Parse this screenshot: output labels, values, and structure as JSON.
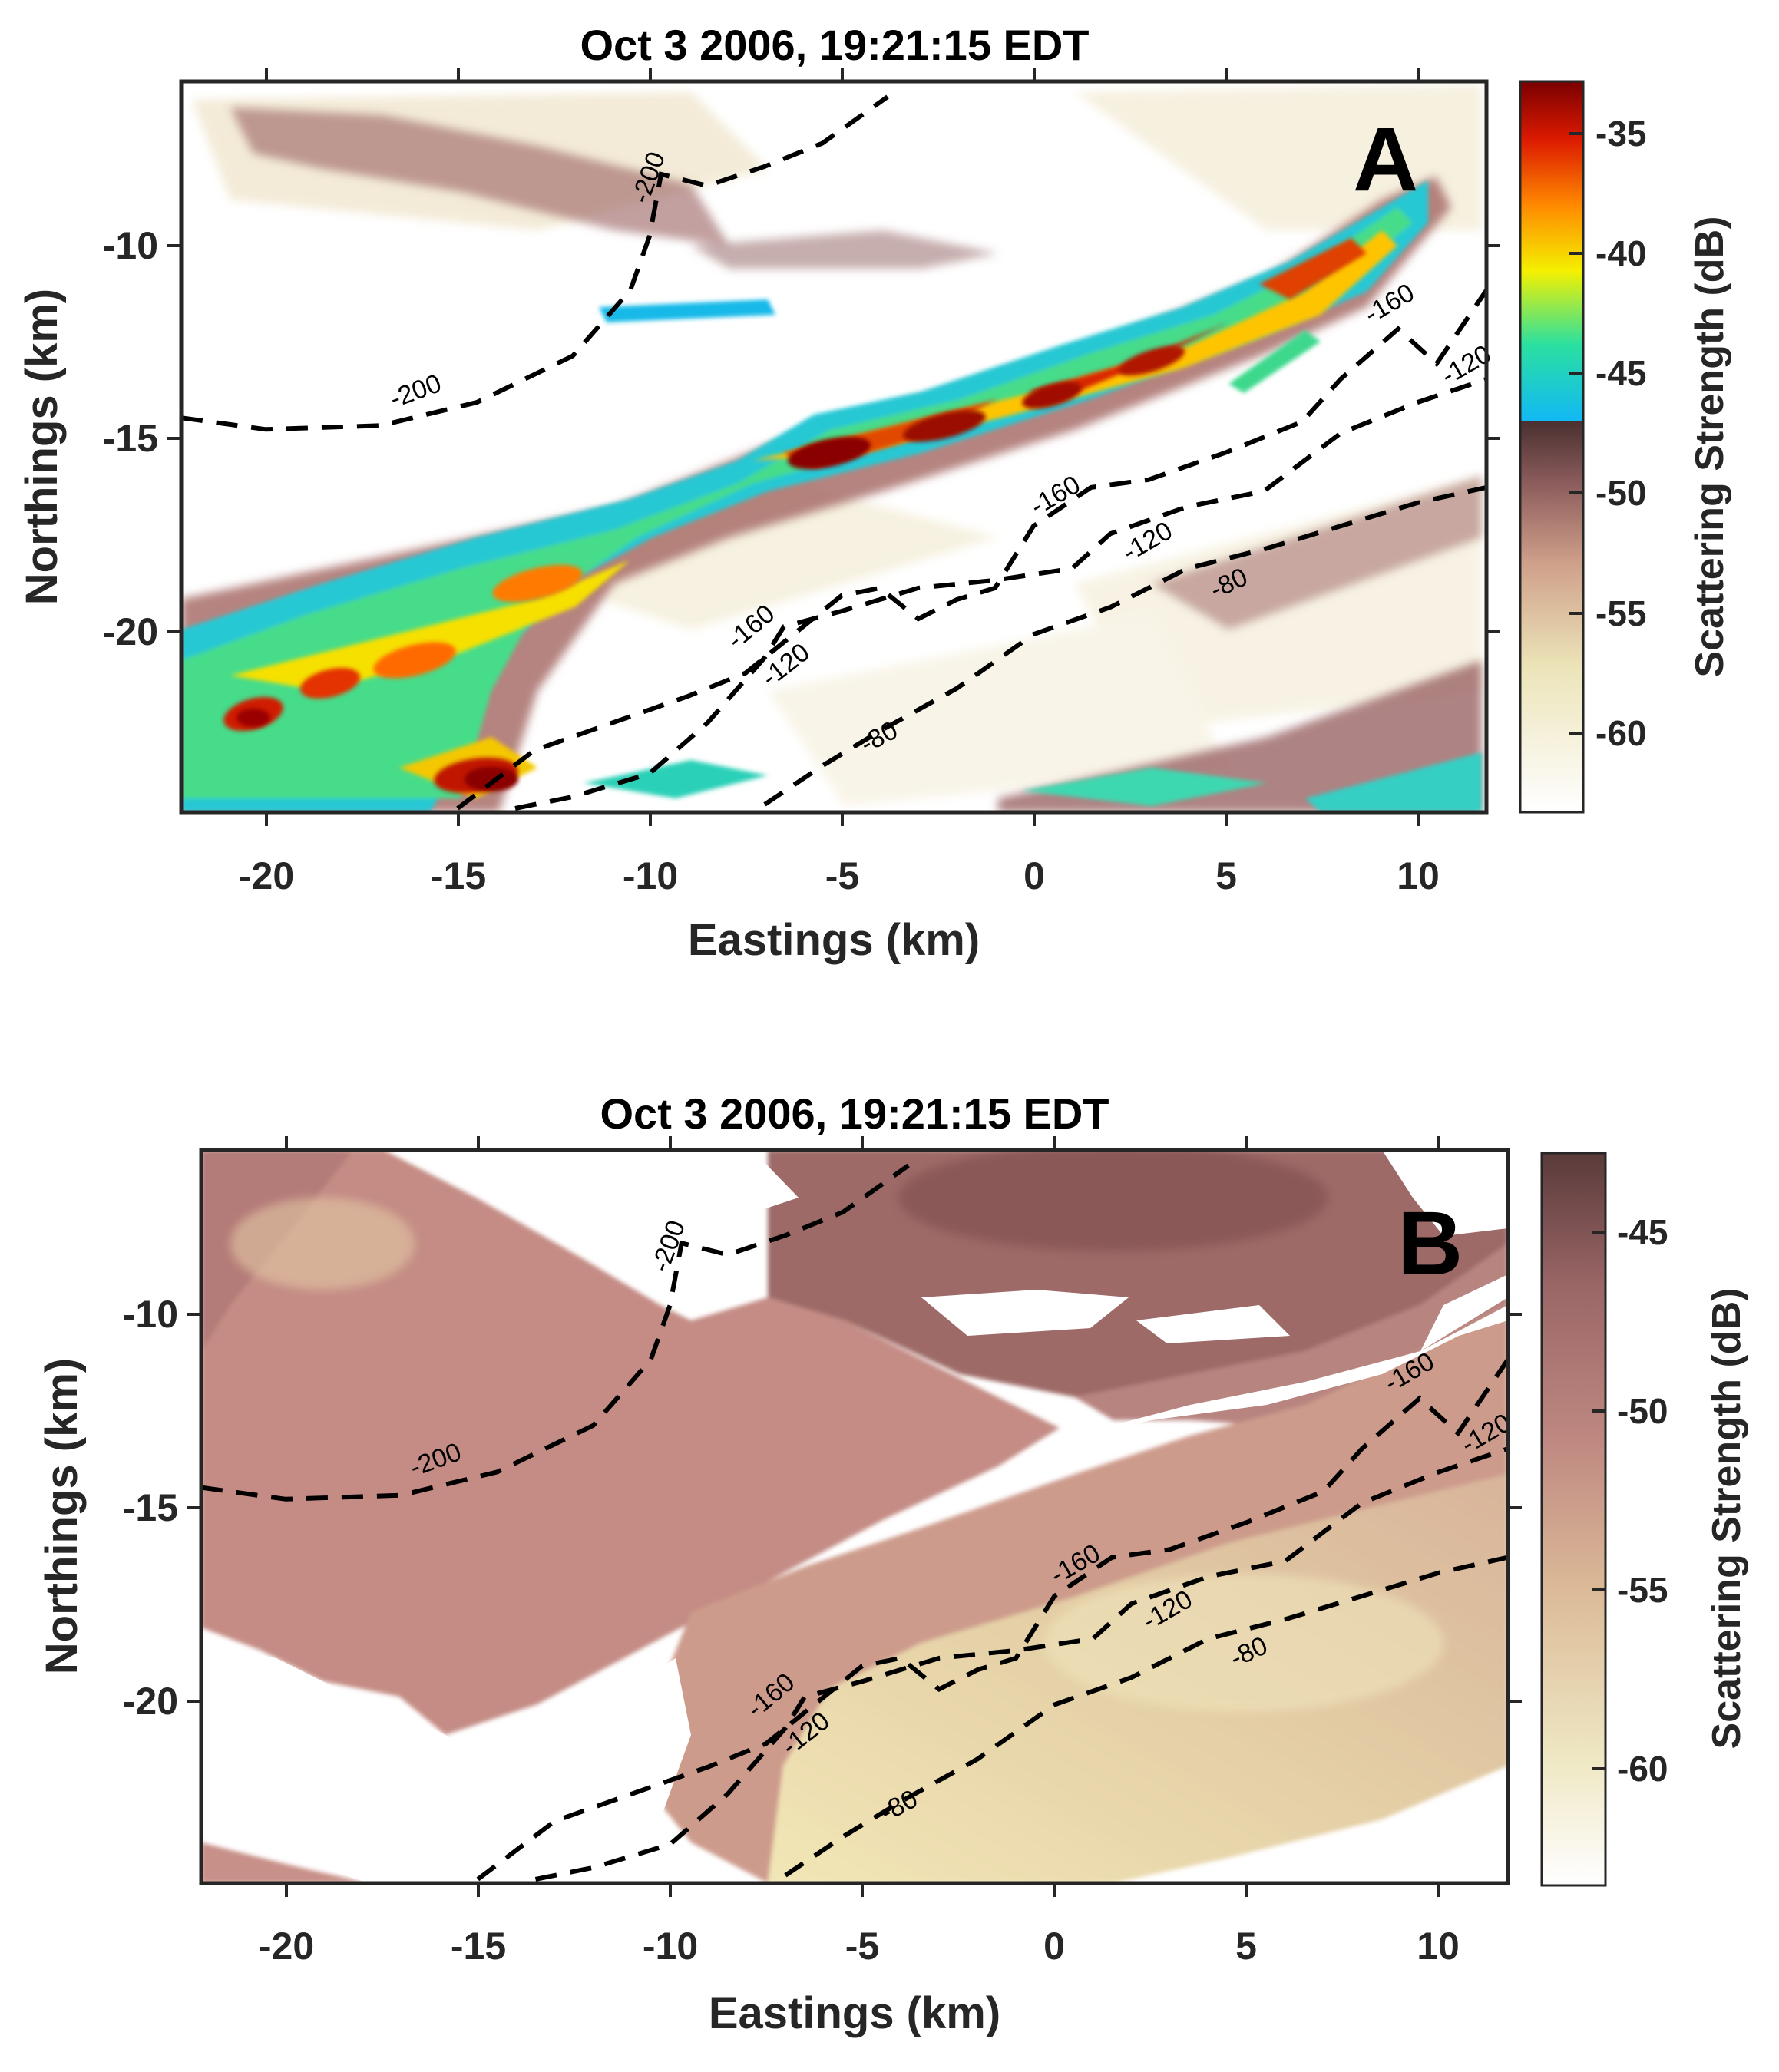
{
  "chart_data": [
    {
      "type": "heatmap",
      "panel_label": "A",
      "title": "Oct 3 2006, 19:21:15 EDT",
      "xlabel": "Eastings (km)",
      "ylabel": "Northings (km)",
      "xlim": [
        -22.2,
        11.8
      ],
      "ylim": [
        -24.7,
        -5.8
      ],
      "xticks": [
        "-20",
        "-15",
        "-10",
        "-5",
        "0",
        "5",
        "10"
      ],
      "yticks": [
        "-10",
        "-15",
        "-20"
      ],
      "colorbar": {
        "label": "Scattering Strength (dB)",
        "range": [
          -63,
          -32.5
        ],
        "ticks": [
          "-35",
          "-40",
          "-45",
          "-50",
          "-55",
          "-60"
        ],
        "colormap": "custom (white-tan-brown below -47 dB, jet above)",
        "colors": [
          "#ffffff",
          "#e9deaa",
          "#b07a77",
          "#4a3030",
          "#0ab4f0",
          "#21e3a4",
          "#f8f000",
          "#ff8c00",
          "#e01a00",
          "#7a0000"
        ]
      },
      "contour_labels": [
        "-200",
        "-200",
        "-160",
        "-160",
        "-160",
        "-120",
        "-120",
        "-120",
        "-80",
        "-80"
      ],
      "contours": [
        {
          "level": -200,
          "x": [
            -22.2,
            -20,
            -17,
            -14.5,
            -12,
            -10.5,
            -10,
            -9.7,
            -8.5,
            -7,
            -5.5,
            -3.8
          ],
          "y": [
            -14.5,
            -14.8,
            -14.7,
            -14.1,
            -12.9,
            -11.2,
            -9.8,
            -8.2,
            -8.5,
            -8,
            -7.4,
            -6.2
          ]
        },
        {
          "level": -160,
          "x": [
            -15,
            -13,
            -11,
            -9,
            -7.5,
            -6,
            -5,
            -4,
            -3,
            -2,
            -1,
            0,
            1.5,
            3,
            5,
            7,
            8,
            9.5,
            10.5,
            11.8
          ],
          "y": [
            -24.6,
            -23.1,
            -22.4,
            -21.7,
            -21.1,
            -19.9,
            -19.1,
            -18.9,
            -19.7,
            -19.2,
            -18.9,
            -17.3,
            -16.3,
            -16.1,
            -15.4,
            -14.6,
            -13.5,
            -12.2,
            -13.1,
            -11.2
          ]
        },
        {
          "level": -120,
          "x": [
            -13.5,
            -12,
            -10,
            -8.5,
            -7,
            -6.5,
            -5,
            -3,
            -1,
            1,
            2,
            4,
            6,
            8,
            10,
            11.8
          ],
          "y": [
            -24.6,
            -24.3,
            -23.7,
            -22.4,
            -20.7,
            -19.9,
            -19.5,
            -18.9,
            -18.7,
            -18.4,
            -17.5,
            -16.8,
            -16.4,
            -14.9,
            -14.1,
            -13.5
          ]
        },
        {
          "level": -80,
          "x": [
            -7,
            -5.5,
            -4,
            -2,
            0,
            2,
            4,
            6,
            8,
            10,
            11.8
          ],
          "y": [
            -24.5,
            -23.5,
            -22.6,
            -21.5,
            -20.1,
            -19.4,
            -18.4,
            -17.9,
            -17.3,
            -16.7,
            -16.3
          ]
        }
      ]
    },
    {
      "type": "heatmap",
      "panel_label": "B",
      "title": "Oct 3 2006, 19:21:15 EDT",
      "xlabel": "Eastings (km)",
      "ylabel": "Northings (km)",
      "xlim": [
        -22.2,
        11.8
      ],
      "ylim": [
        -24.7,
        -5.8
      ],
      "xticks": [
        "-20",
        "-15",
        "-10",
        "-5",
        "0",
        "5",
        "10"
      ],
      "yticks": [
        "-10",
        "-15",
        "-20"
      ],
      "colorbar": {
        "label": "Scattering Strength (dB)",
        "range": [
          -63.5,
          -43
        ],
        "ticks": [
          "-45",
          "-50",
          "-55",
          "-60"
        ],
        "colormap": "pink-brown",
        "colors": [
          "#ffffff",
          "#efe8c4",
          "#e2c39c",
          "#c08a82",
          "#9a6666",
          "#5a3a3a"
        ]
      },
      "contour_labels": [
        "-200",
        "-200",
        "-160",
        "-160",
        "-160",
        "-120",
        "-120",
        "-120",
        "-80",
        "-80"
      ],
      "contours": [
        {
          "level": -200,
          "x": [
            -22.2,
            -20,
            -17,
            -14.5,
            -12,
            -10.5,
            -10,
            -9.7,
            -8.5,
            -7,
            -5.5,
            -3.8
          ],
          "y": [
            -14.5,
            -14.8,
            -14.7,
            -14.1,
            -12.9,
            -11.2,
            -9.8,
            -8.2,
            -8.5,
            -8,
            -7.4,
            -6.2
          ]
        },
        {
          "level": -160,
          "x": [
            -15,
            -13,
            -11,
            -9,
            -7.5,
            -6,
            -5,
            -4,
            -3,
            -2,
            -1,
            0,
            1.5,
            3,
            5,
            7,
            8,
            9.5,
            10.5,
            11.8
          ],
          "y": [
            -24.6,
            -23.1,
            -22.4,
            -21.7,
            -21.1,
            -19.9,
            -19.1,
            -18.9,
            -19.7,
            -19.2,
            -18.9,
            -17.3,
            -16.3,
            -16.1,
            -15.4,
            -14.6,
            -13.5,
            -12.2,
            -13.1,
            -11.2
          ]
        },
        {
          "level": -120,
          "x": [
            -13.5,
            -12,
            -10,
            -8.5,
            -7,
            -6.5,
            -5,
            -3,
            -1,
            1,
            2,
            4,
            6,
            8,
            10,
            11.8
          ],
          "y": [
            -24.6,
            -24.3,
            -23.7,
            -22.4,
            -20.7,
            -19.9,
            -19.5,
            -18.9,
            -18.7,
            -18.4,
            -17.5,
            -16.8,
            -16.4,
            -14.9,
            -14.1,
            -13.5
          ]
        },
        {
          "level": -80,
          "x": [
            -7,
            -5.5,
            -4,
            -2,
            0,
            2,
            4,
            6,
            8,
            10,
            11.8
          ],
          "y": [
            -24.5,
            -23.5,
            -22.6,
            -21.5,
            -20.1,
            -19.4,
            -18.4,
            -17.9,
            -17.3,
            -16.7,
            -16.3
          ]
        }
      ]
    }
  ]
}
